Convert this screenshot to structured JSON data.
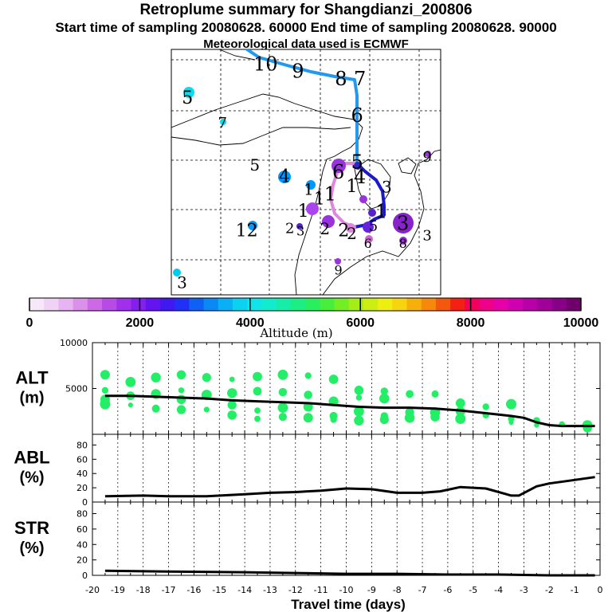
{
  "header": {
    "title": "Retroplume summary for Shangdianzi_200806",
    "subtitle": "Start time of sampling 20080628. 60000     End time of sampling 20080628. 90000",
    "met_line": "Meteorological data used is ECMWF"
  },
  "colors": {
    "trajectory_light": "#2299ee",
    "trajectory_dark": "#1a1acc",
    "trajectory_pink": "#dd88dd",
    "marker_green": "#22ee66",
    "curve": "#000000"
  },
  "map": {
    "labels": [
      {
        "text": "10",
        "lon": 0.35,
        "lat": 0.06,
        "color": "#000000",
        "size": 24
      },
      {
        "text": "9",
        "lon": 0.47,
        "lat": 0.09,
        "color": "#000000",
        "size": 24
      },
      {
        "text": "8",
        "lon": 0.63,
        "lat": 0.12,
        "color": "#000000",
        "size": 24
      },
      {
        "text": "7",
        "lon": 0.7,
        "lat": 0.12,
        "color": "#000000",
        "size": 24
      },
      {
        "text": "6",
        "lon": 0.69,
        "lat": 0.27,
        "color": "#000000",
        "size": 24
      },
      {
        "text": "5",
        "lon": 0.69,
        "lat": 0.46,
        "color": "#000000",
        "size": 24
      },
      {
        "text": "4",
        "lon": 0.7,
        "lat": 0.52,
        "color": "#000000",
        "size": 24
      },
      {
        "text": "6",
        "lon": 0.62,
        "lat": 0.5,
        "color": "#000000",
        "size": 24
      },
      {
        "text": "1",
        "lon": 0.67,
        "lat": 0.56,
        "color": "#000000",
        "size": 22
      },
      {
        "text": "3",
        "lon": 0.8,
        "lat": 0.56,
        "color": "#000000",
        "size": 20
      },
      {
        "text": "1",
        "lon": 0.78,
        "lat": 0.66,
        "color": "#000000",
        "size": 24
      },
      {
        "text": "9",
        "lon": 0.95,
        "lat": 0.44,
        "color": "#000000",
        "size": 18
      },
      {
        "text": "5",
        "lon": 0.06,
        "lat": 0.2,
        "color": "#000000",
        "size": 22
      },
      {
        "text": "7",
        "lon": 0.19,
        "lat": 0.3,
        "color": "#000000",
        "size": 18
      },
      {
        "text": "5",
        "lon": 0.31,
        "lat": 0.47,
        "color": "#000000",
        "size": 20
      },
      {
        "text": "4",
        "lon": 0.42,
        "lat": 0.52,
        "color": "#000000",
        "size": 22
      },
      {
        "text": "1",
        "lon": 0.51,
        "lat": 0.57,
        "color": "#000000",
        "size": 20
      },
      {
        "text": "1",
        "lon": 0.59,
        "lat": 0.59,
        "color": "#000000",
        "size": 24
      },
      {
        "text": "1",
        "lon": 0.55,
        "lat": 0.61,
        "color": "#000000",
        "size": 22
      },
      {
        "text": "1",
        "lon": 0.49,
        "lat": 0.66,
        "color": "#000000",
        "size": 22
      },
      {
        "text": "12",
        "lon": 0.28,
        "lat": 0.74,
        "color": "#000000",
        "size": 22
      },
      {
        "text": "2",
        "lon": 0.44,
        "lat": 0.73,
        "color": "#000000",
        "size": 18
      },
      {
        "text": "3",
        "lon": 0.48,
        "lat": 0.74,
        "color": "#000000",
        "size": 16
      },
      {
        "text": "2",
        "lon": 0.57,
        "lat": 0.73,
        "color": "#000000",
        "size": 20
      },
      {
        "text": "2",
        "lon": 0.64,
        "lat": 0.74,
        "color": "#000000",
        "size": 22
      },
      {
        "text": "2",
        "lon": 0.67,
        "lat": 0.75,
        "color": "#000000",
        "size": 20
      },
      {
        "text": "5",
        "lon": 0.75,
        "lat": 0.72,
        "color": "#000000",
        "size": 18
      },
      {
        "text": "3",
        "lon": 0.86,
        "lat": 0.71,
        "color": "#000000",
        "size": 24
      },
      {
        "text": "3",
        "lon": 0.95,
        "lat": 0.76,
        "color": "#000000",
        "size": 18
      },
      {
        "text": "6",
        "lon": 0.73,
        "lat": 0.79,
        "color": "#000000",
        "size": 16
      },
      {
        "text": "8",
        "lon": 0.86,
        "lat": 0.79,
        "color": "#000000",
        "size": 16
      },
      {
        "text": "9",
        "lon": 0.62,
        "lat": 0.9,
        "color": "#000000",
        "size": 16
      },
      {
        "text": "3",
        "lon": 0.04,
        "lat": 0.95,
        "color": "#000000",
        "size": 20
      }
    ]
  },
  "colorbar": {
    "tick_labels": [
      "0",
      "2000",
      "4000",
      "6000",
      "8000",
      "10000"
    ],
    "label": "Altitude (m)",
    "range": [
      0,
      10000
    ]
  },
  "chart_data": [
    {
      "type": "line",
      "title": "ALT",
      "ylabel_top": "ALT",
      "ylabel_unit": "(m)",
      "ylim": [
        0,
        10000
      ],
      "yticks": [
        5000,
        10000
      ],
      "x": [
        -19.5,
        -18.5,
        -17.5,
        -16.5,
        -15.5,
        -14.5,
        -13.5,
        -12.5,
        -11.5,
        -10.5,
        -9.5,
        -8.5,
        -7.5,
        -6.5,
        -5.5,
        -4.5,
        -3.5,
        -3,
        -2.5,
        -2,
        -1.5,
        -1,
        -0.5,
        -0.2
      ],
      "line": [
        4200,
        4200,
        4100,
        4000,
        3900,
        3700,
        3600,
        3500,
        3400,
        3200,
        3000,
        2900,
        2900,
        2800,
        2600,
        2300,
        2000,
        1800,
        1300,
        1000,
        900,
        900,
        900,
        900
      ],
      "scatter": [
        {
          "x": -19.5,
          "ys": [
            6500,
            4800,
            3800,
            3300
          ]
        },
        {
          "x": -18.5,
          "ys": [
            5700,
            4200,
            3200
          ]
        },
        {
          "x": -17.5,
          "ys": [
            6200,
            4400,
            2800
          ]
        },
        {
          "x": -16.5,
          "ys": [
            6500,
            4800,
            3800,
            2700
          ]
        },
        {
          "x": -15.5,
          "ys": [
            6200,
            4300,
            2700
          ]
        },
        {
          "x": -14.5,
          "ys": [
            6000,
            4500,
            3200,
            2100
          ]
        },
        {
          "x": -13.5,
          "ys": [
            6300,
            4700,
            2600,
            1700
          ]
        },
        {
          "x": -12.5,
          "ys": [
            6500,
            4600,
            2900,
            1900
          ]
        },
        {
          "x": -11.5,
          "ys": [
            6400,
            4300,
            3000,
            1800
          ]
        },
        {
          "x": -10.5,
          "ys": [
            6000,
            3600,
            2000,
            1600
          ]
        },
        {
          "x": -9.5,
          "ys": [
            4800,
            4000,
            2500,
            1500
          ]
        },
        {
          "x": -8.5,
          "ys": [
            4700,
            3900,
            2000,
            1600
          ]
        },
        {
          "x": -7.5,
          "ys": [
            4400,
            2400,
            1800
          ]
        },
        {
          "x": -6.5,
          "ys": [
            4400,
            2400,
            1900
          ]
        },
        {
          "x": -5.5,
          "ys": [
            3400,
            2500,
            1700
          ]
        },
        {
          "x": -4.5,
          "ys": [
            3000,
            2100
          ]
        },
        {
          "x": -3.5,
          "ys": [
            3300,
            1700,
            1300
          ]
        },
        {
          "x": -2.5,
          "ys": [
            1500,
            1000
          ]
        },
        {
          "x": -1.5,
          "ys": [
            1100
          ]
        },
        {
          "x": -0.5,
          "ys": [
            1000,
            700
          ]
        }
      ]
    },
    {
      "type": "line",
      "title": "ABL",
      "ylabel_top": "ABL",
      "ylabel_unit": "(%)",
      "ylim": [
        0,
        95
      ],
      "yticks": [
        0,
        20,
        40,
        60,
        80
      ],
      "x": [
        -19.5,
        -18,
        -17,
        -15.5,
        -14,
        -13,
        -12,
        -11,
        -10,
        -9,
        -8,
        -7,
        -6.3,
        -5.5,
        -4.5,
        -3.5,
        -3.2,
        -2.5,
        -2,
        -1.2,
        -0.2
      ],
      "values": [
        8,
        9,
        8,
        8,
        11,
        13,
        14,
        16,
        19,
        18,
        13,
        13,
        15,
        21,
        19,
        9,
        9,
        22,
        26,
        30,
        35
      ]
    },
    {
      "type": "line",
      "title": "STR",
      "ylabel_top": "STR",
      "ylabel_unit": "(%)",
      "ylim": [
        0,
        95
      ],
      "yticks": [
        0,
        20,
        40,
        60,
        80
      ],
      "x": [
        -19.5,
        -17,
        -14,
        -12,
        -10,
        -8,
        -6,
        -4,
        -2,
        -0.2
      ],
      "values": [
        6,
        5,
        4,
        3,
        2,
        2,
        1,
        1,
        0,
        0
      ]
    }
  ],
  "axis": {
    "xlabel": "Travel time (days)",
    "xticks": [
      "-20",
      "-19",
      "-18",
      "-17",
      "-16",
      "-15",
      "-14",
      "-13",
      "-12",
      "-11",
      "-10",
      "-9",
      "-8",
      "-7",
      "-6",
      "-5",
      "-4",
      "-3",
      "-2",
      "-1",
      "0"
    ],
    "xlim": [
      -20,
      0
    ]
  }
}
